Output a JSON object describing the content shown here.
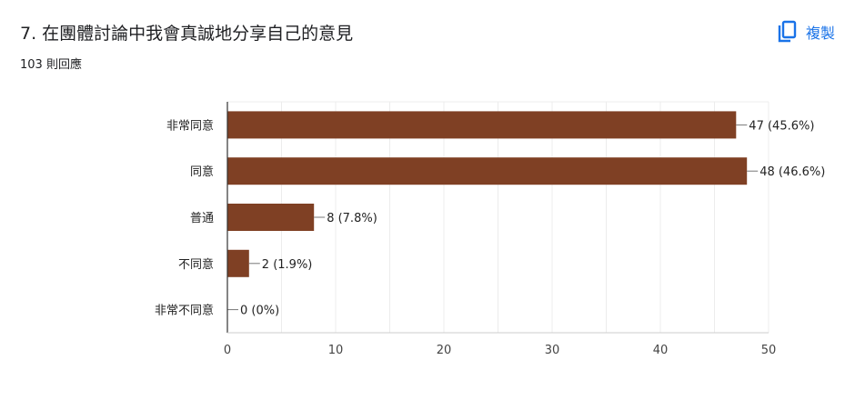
{
  "question": {
    "title": "7.  在團體討論中我會真誠地分享自己的意見",
    "response_count": "103 則回應"
  },
  "toolbar": {
    "copy_label": "複製",
    "copy_icon": "copy-icon"
  },
  "colors": {
    "bar": "#7f4024",
    "accent": "#1a73e8",
    "grid": "#ececec",
    "axis": "#333333"
  },
  "chart_data": {
    "type": "bar",
    "orientation": "horizontal",
    "title": "",
    "xlabel": "",
    "ylabel": "",
    "categories": [
      "非常同意",
      "同意",
      "普通",
      "不同意",
      "非常不同意"
    ],
    "values": [
      47,
      48,
      8,
      2,
      0
    ],
    "data_labels": [
      "47 (45.6%)",
      "48 (46.6%)",
      "8 (7.8%)",
      "2 (1.9%)",
      "0 (0%)"
    ],
    "xlim": [
      0,
      50
    ],
    "xticks": [
      0,
      10,
      20,
      30,
      40,
      50
    ],
    "grid": true,
    "legend": "none"
  }
}
